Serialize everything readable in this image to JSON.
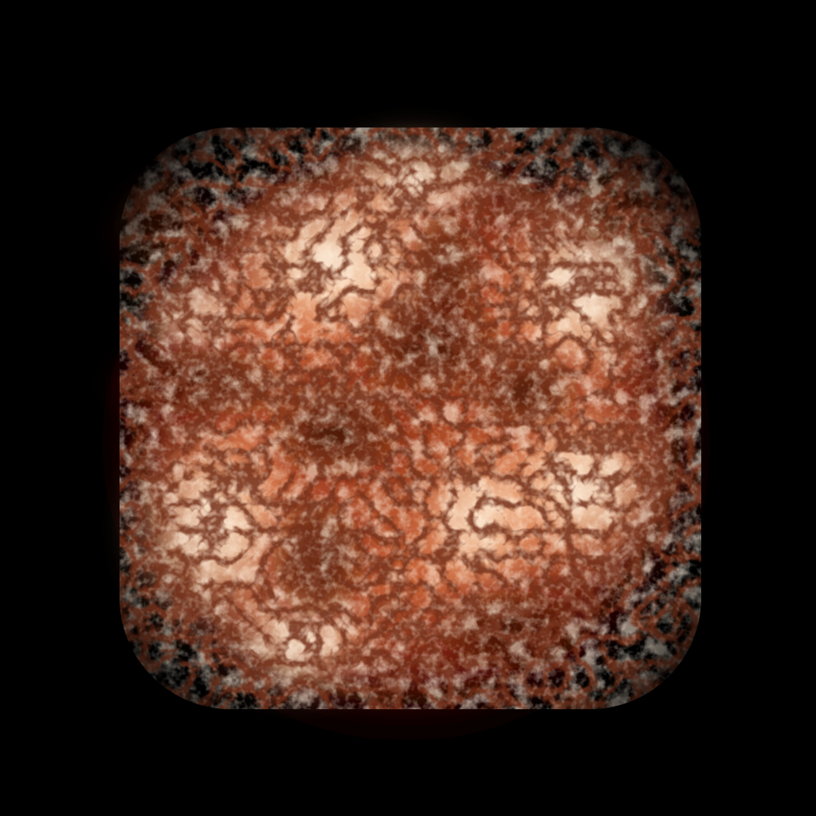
{
  "image": {
    "subject": "glowing-cellular-orb",
    "background_color": "#000000",
    "palette": {
      "hot_core": "#fff6e8",
      "bright": "#ffd9b0",
      "warm": "#f0a070",
      "mid": "#c25a32",
      "deep": "#6e1a0c",
      "shadow": "#2a0502",
      "black": "#000000"
    }
  }
}
